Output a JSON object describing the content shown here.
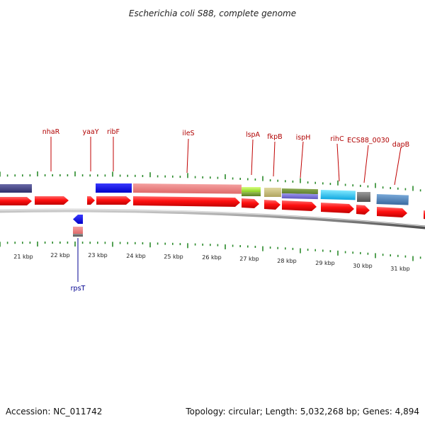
{
  "title": "Escherichia coli S88, complete genome",
  "footer": {
    "accession": "Accession: NC_011742",
    "summary": "Topology: circular; Length: 5,032,268 bp; Genes: 4,894"
  },
  "colors": {
    "cds": "#ff1010",
    "label_forward": "#b00000",
    "label_reverse": "#000090",
    "tick": "#2a8a2a"
  },
  "kbp_labels": [
    "21 kbp",
    "22 kbp",
    "23 kbp",
    "24 kbp",
    "25 kbp",
    "26 kbp",
    "27 kbp",
    "28 kbp",
    "29 kbp",
    "30 kbp",
    "31 kbp"
  ],
  "forward_genes": [
    "nhaR",
    "yaaY",
    "ribF",
    "ileS",
    "lspA",
    "fkpB",
    "ispH",
    "rihC",
    "ECS88_0030",
    "dapB"
  ],
  "reverse_genes": [
    "rpsT"
  ]
}
